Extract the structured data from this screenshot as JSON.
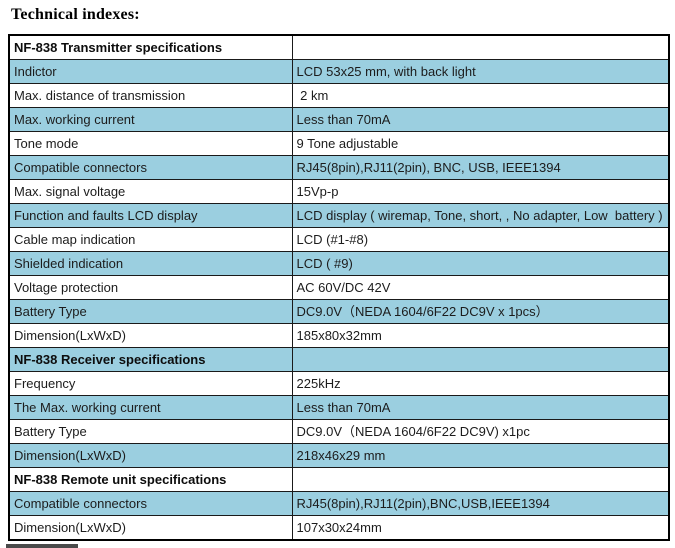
{
  "page": {
    "title": "Technical indexes:"
  },
  "colors": {
    "row_highlight": "#9BCFE0",
    "row_plain": "#ffffff",
    "border": "#1a1a1a",
    "text": "#1c1c1c"
  },
  "table": {
    "rows": [
      {
        "kind": "section",
        "param": "NF-838 Transmitter specifications",
        "value": "",
        "shade": "white"
      },
      {
        "kind": "data",
        "param": "Indictor",
        "value": "LCD 53x25 mm, with back light",
        "shade": "blue"
      },
      {
        "kind": "data",
        "param": "Max. distance of transmission",
        "value": " 2 km",
        "shade": "white"
      },
      {
        "kind": "data",
        "param": "Max. working current",
        "value": "Less than 70mA",
        "shade": "blue"
      },
      {
        "kind": "data",
        "param": "Tone mode",
        "value": "9 Tone adjustable",
        "shade": "white"
      },
      {
        "kind": "data",
        "param": "Compatible connectors",
        "value": "RJ45(8pin),RJ11(2pin), BNC, USB, IEEE1394",
        "shade": "blue"
      },
      {
        "kind": "data",
        "param": "Max. signal voltage",
        "value": "15Vp-p",
        "shade": "white"
      },
      {
        "kind": "data",
        "param": "Function and faults LCD display",
        "value": "LCD display ( wiremap, Tone, short, , No adapter, Low  battery )",
        "shade": "blue"
      },
      {
        "kind": "data",
        "param": "Cable map indication",
        "value": "LCD (#1-#8)",
        "shade": "white"
      },
      {
        "kind": "data",
        "param": "Shielded indication",
        "value": "LCD ( #9)",
        "shade": "blue"
      },
      {
        "kind": "data",
        "param": "Voltage protection",
        "value": "AC 60V/DC 42V",
        "shade": "white"
      },
      {
        "kind": "data",
        "param": "Battery Type",
        "value": "DC9.0V（NEDA 1604/6F22 DC9V x 1pcs）",
        "shade": "blue"
      },
      {
        "kind": "data",
        "param": "Dimension(LxWxD)",
        "value": "185x80x32mm",
        "shade": "white"
      },
      {
        "kind": "section",
        "param": "NF-838 Receiver specifications",
        "value": "",
        "shade": "blue"
      },
      {
        "kind": "data",
        "param": "Frequency",
        "value": "225kHz",
        "shade": "white"
      },
      {
        "kind": "data",
        "param": "The Max. working current",
        "value": "Less than 70mA",
        "shade": "blue"
      },
      {
        "kind": "data",
        "param": "Battery Type",
        "value": "DC9.0V（NEDA 1604/6F22 DC9V) x1pc",
        "shade": "white"
      },
      {
        "kind": "data",
        "param": "Dimension(LxWxD)",
        "value": "218x46x29 mm",
        "shade": "blue"
      },
      {
        "kind": "section",
        "param": "NF-838 Remote unit specifications",
        "value": "",
        "shade": "white"
      },
      {
        "kind": "data",
        "param": "Compatible connectors",
        "value": "RJ45(8pin),RJ11(2pin),BNC,USB,IEEE1394",
        "shade": "blue"
      },
      {
        "kind": "data",
        "param": "Dimension(LxWxD)",
        "value": "107x30x24mm",
        "shade": "white"
      }
    ]
  }
}
